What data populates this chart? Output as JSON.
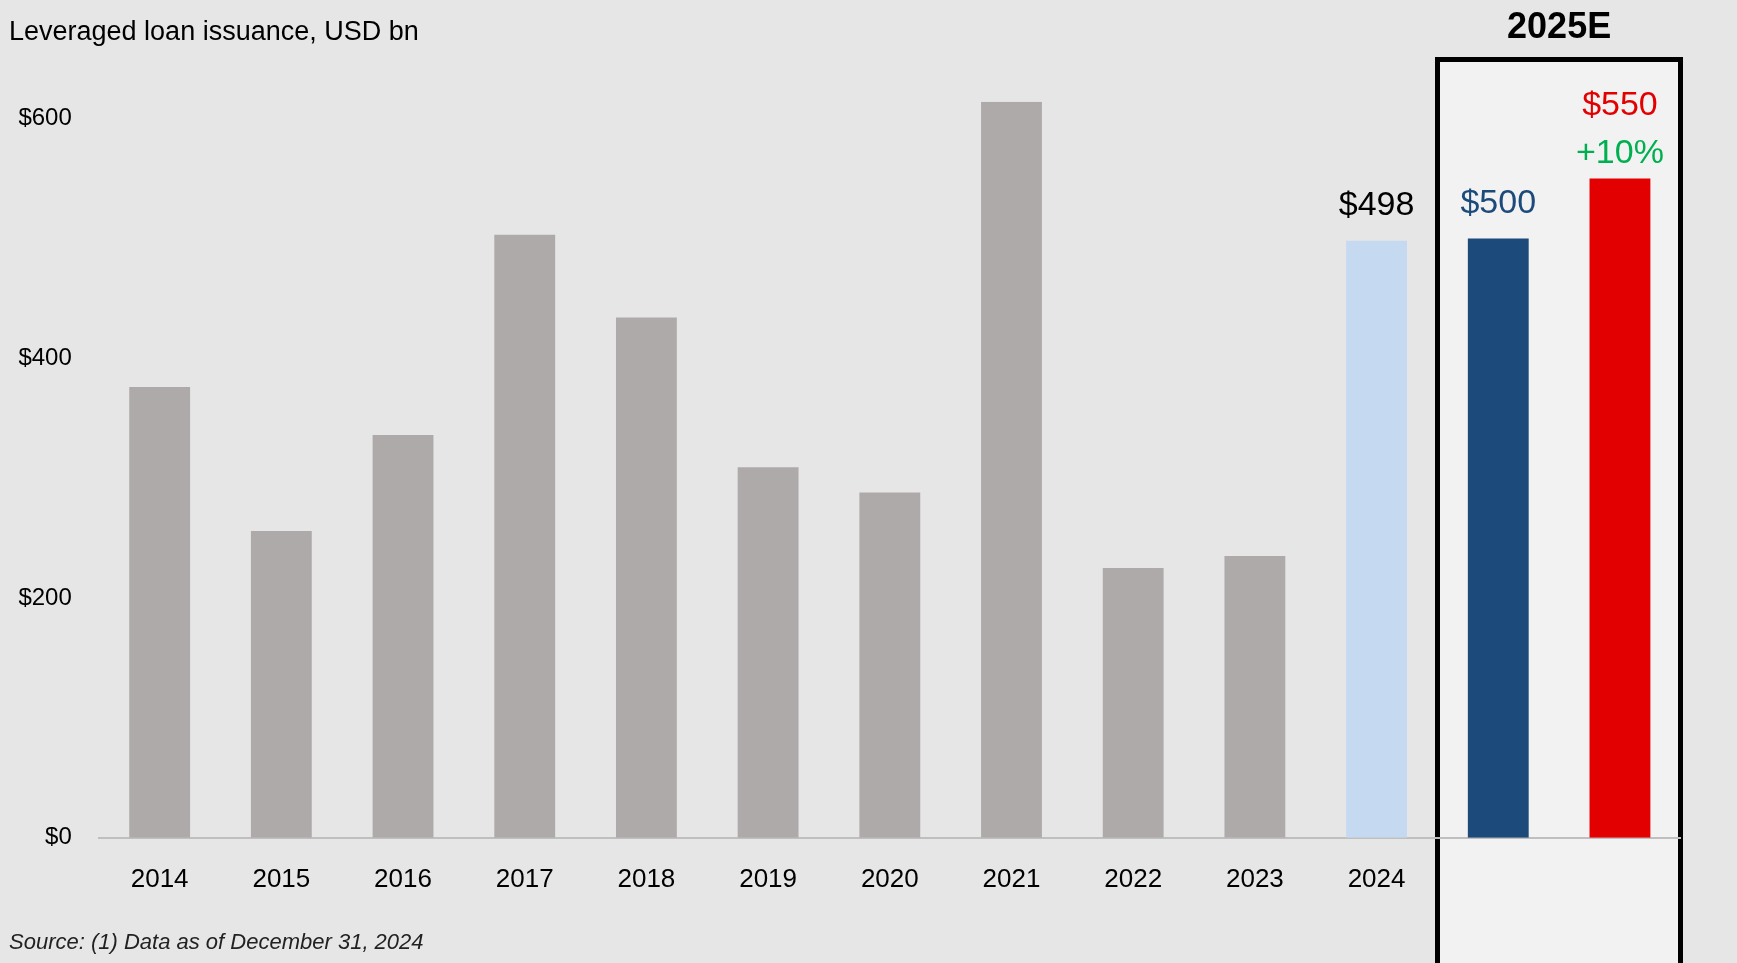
{
  "chart_data": {
    "type": "bar",
    "title": "Leveraged loan issuance, USD bn",
    "categories": [
      "2014",
      "2015",
      "2016",
      "2017",
      "2018",
      "2019",
      "2020",
      "2021",
      "2022",
      "2023",
      "2024",
      null,
      null
    ],
    "values": [
      376,
      256,
      336,
      503,
      434,
      309,
      288,
      614,
      225,
      235,
      498,
      500,
      550
    ],
    "colors": [
      "#aeaaa9",
      "#aeaaa9",
      "#aeaaa9",
      "#aeaaa9",
      "#aeaaa9",
      "#aeaaa9",
      "#aeaaa9",
      "#aeaaa9",
      "#aeaaa9",
      "#aeaaa9",
      "#c5d9f1",
      "#1c4a7a",
      "#e30000"
    ],
    "value_labels": [
      null,
      null,
      null,
      null,
      null,
      null,
      null,
      null,
      null,
      null,
      "$498",
      "$500",
      "$550"
    ],
    "ylim": [
      0,
      614
    ],
    "yticks": [
      {
        "value": 0,
        "label": "$0"
      },
      {
        "value": 200,
        "label": "$200"
      },
      {
        "value": 400,
        "label": "$400"
      },
      {
        "value": 600,
        "label": "$600"
      }
    ],
    "grid": false,
    "annotations": [
      "2025E",
      {
        "text": "+10%",
        "y": 550
      },
      "Source: (1) Data as of December 31, 2024"
    ]
  }
}
